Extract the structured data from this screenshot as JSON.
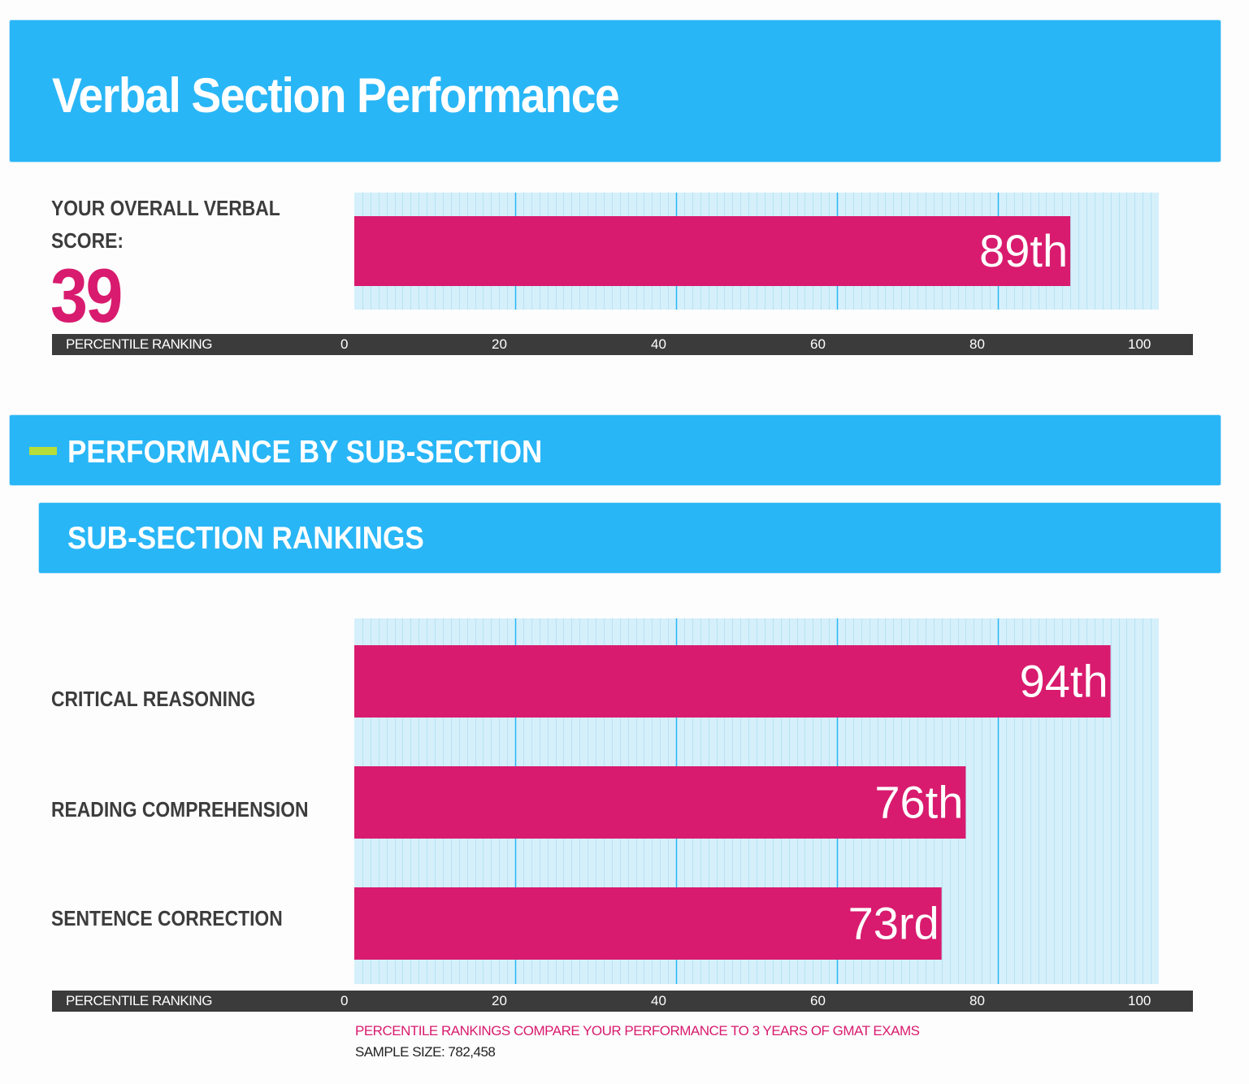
{
  "header": {
    "title": "Verbal Section Performance"
  },
  "overall": {
    "label_line1": "YOUR OVERALL VERBAL",
    "label_line2": "SCORE:",
    "score": "39"
  },
  "subsection_header": {
    "title": "PERFORMANCE BY SUB-SECTION"
  },
  "rankings_header": {
    "title": "SUB-SECTION RANKINGS"
  },
  "footnote": {
    "compare": "PERCENTILE RANKINGS COMPARE YOUR PERFORMANCE TO 3 YEARS OF GMAT EXAMS",
    "sample": "SAMPLE SIZE: 782,458"
  },
  "colors": {
    "banner": "#29b6f6",
    "bar": "#d81b6e",
    "grid_bg": "#d5f0fb",
    "grid_major": "#29b6f6",
    "grid_minor": "#b8e2f3",
    "axis_bg": "#3b3b3b",
    "accent_dash": "#b7dd3a"
  },
  "chart_data": [
    {
      "type": "bar",
      "orientation": "horizontal",
      "title": "YOUR OVERALL VERBAL SCORE: 39",
      "xlabel": "PERCENTILE RANKING",
      "xlim": [
        0,
        100
      ],
      "xticks": [
        "0",
        "20",
        "40",
        "60",
        "80",
        "100"
      ],
      "categories": [
        "Overall Verbal"
      ],
      "values": [
        89
      ],
      "data_labels": [
        "89th"
      ]
    },
    {
      "type": "bar",
      "orientation": "horizontal",
      "title": "SUB-SECTION RANKINGS",
      "xlabel": "PERCENTILE RANKING",
      "xlim": [
        0,
        100
      ],
      "xticks": [
        "0",
        "20",
        "40",
        "60",
        "80",
        "100"
      ],
      "categories": [
        "CRITICAL REASONING",
        "READING COMPREHENSION",
        "SENTENCE CORRECTION"
      ],
      "values": [
        94,
        76,
        73
      ],
      "data_labels": [
        "94th",
        "76th",
        "73rd"
      ]
    }
  ]
}
